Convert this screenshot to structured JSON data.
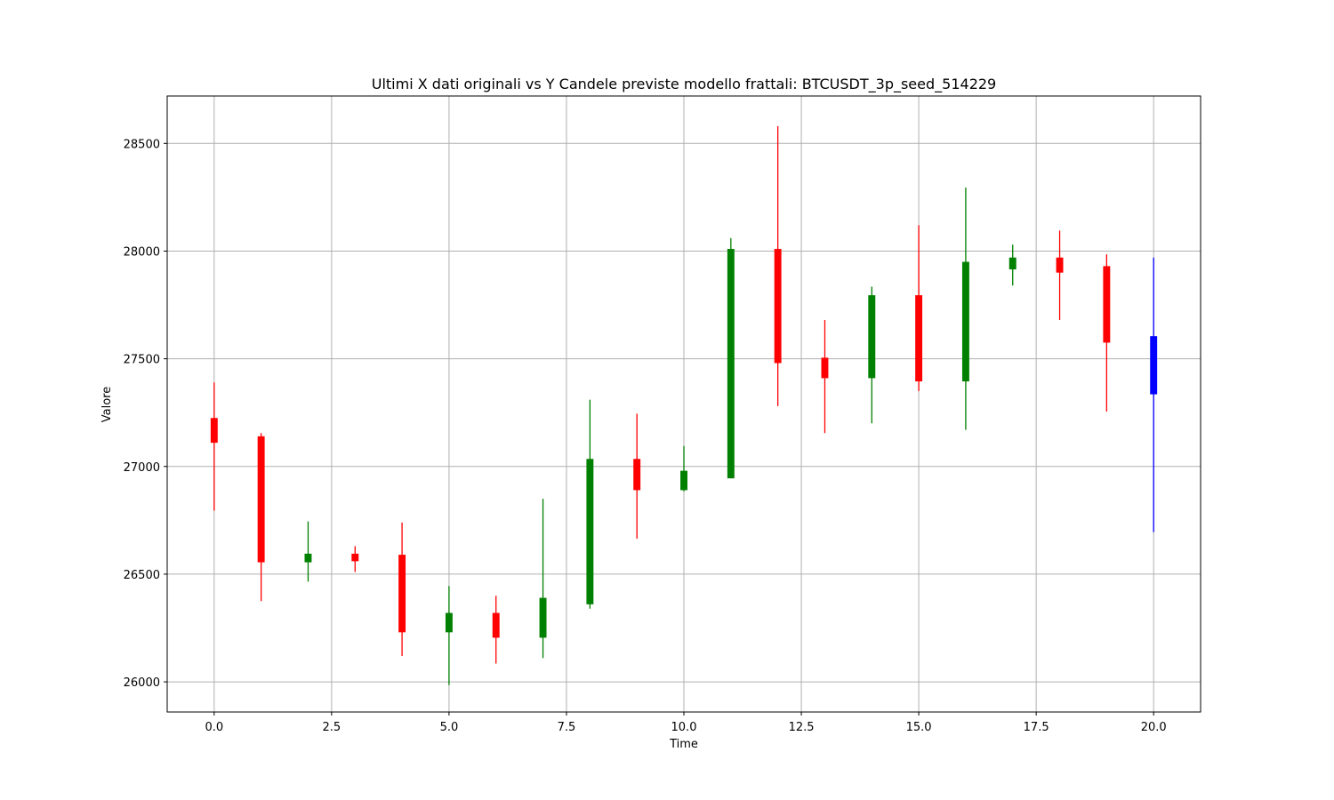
{
  "chart_data": {
    "type": "candlestick",
    "title": "Ultimi X dati originali vs Y Candele previste modello frattali: BTCUSDT_3p_seed_514229",
    "xlabel": "Time",
    "ylabel": "Valore",
    "xlim": [
      -1.0,
      21.0
    ],
    "ylim": [
      25860,
      28720
    ],
    "xticks": [
      0.0,
      2.5,
      5.0,
      7.5,
      10.0,
      12.5,
      15.0,
      17.5,
      20.0
    ],
    "xtick_labels": [
      "0.0",
      "2.5",
      "5.0",
      "7.5",
      "10.0",
      "12.5",
      "15.0",
      "17.5",
      "20.0"
    ],
    "yticks": [
      26000,
      26500,
      27000,
      27500,
      28000,
      28500
    ],
    "ytick_labels": [
      "26000",
      "26500",
      "27000",
      "27500",
      "28000",
      "28500"
    ],
    "grid": true,
    "colors": {
      "up": "#008000",
      "down": "#ff0000",
      "forecast": "#0000ff"
    },
    "candles": [
      {
        "x": 0,
        "open": 27225,
        "high": 27390,
        "low": 26795,
        "close": 27110,
        "color": "#ff0000"
      },
      {
        "x": 1,
        "open": 27140,
        "high": 27155,
        "low": 26375,
        "close": 26555,
        "color": "#ff0000"
      },
      {
        "x": 2,
        "open": 26555,
        "high": 26745,
        "low": 26465,
        "close": 26595,
        "color": "#008000"
      },
      {
        "x": 3,
        "open": 26595,
        "high": 26630,
        "low": 26510,
        "close": 26560,
        "color": "#ff0000"
      },
      {
        "x": 4,
        "open": 26590,
        "high": 26740,
        "low": 26120,
        "close": 26230,
        "color": "#ff0000"
      },
      {
        "x": 5,
        "open": 26230,
        "high": 26445,
        "low": 25985,
        "close": 26320,
        "color": "#008000"
      },
      {
        "x": 6,
        "open": 26320,
        "high": 26400,
        "low": 26085,
        "close": 26205,
        "color": "#ff0000"
      },
      {
        "x": 7,
        "open": 26205,
        "high": 26850,
        "low": 26110,
        "close": 26390,
        "color": "#008000"
      },
      {
        "x": 8,
        "open": 26360,
        "high": 27310,
        "low": 26340,
        "close": 27035,
        "color": "#008000"
      },
      {
        "x": 9,
        "open": 27035,
        "high": 27245,
        "low": 26665,
        "close": 26890,
        "color": "#ff0000"
      },
      {
        "x": 10,
        "open": 26890,
        "high": 27095,
        "low": 26885,
        "close": 26980,
        "color": "#008000"
      },
      {
        "x": 11,
        "open": 26945,
        "high": 28060,
        "low": 26945,
        "close": 28010,
        "color": "#008000"
      },
      {
        "x": 12,
        "open": 28010,
        "high": 28580,
        "low": 27280,
        "close": 27480,
        "color": "#ff0000"
      },
      {
        "x": 13,
        "open": 27505,
        "high": 27680,
        "low": 27155,
        "close": 27410,
        "color": "#ff0000"
      },
      {
        "x": 14,
        "open": 27410,
        "high": 27835,
        "low": 27200,
        "close": 27795,
        "color": "#008000"
      },
      {
        "x": 15,
        "open": 27795,
        "high": 28120,
        "low": 27350,
        "close": 27395,
        "color": "#ff0000"
      },
      {
        "x": 16,
        "open": 27395,
        "high": 28295,
        "low": 27170,
        "close": 27950,
        "color": "#008000"
      },
      {
        "x": 17,
        "open": 27915,
        "high": 28030,
        "low": 27840,
        "close": 27970,
        "color": "#008000"
      },
      {
        "x": 18,
        "open": 27970,
        "high": 28095,
        "low": 27680,
        "close": 27900,
        "color": "#ff0000"
      },
      {
        "x": 19,
        "open": 27930,
        "high": 27985,
        "low": 27255,
        "close": 27575,
        "color": "#ff0000"
      },
      {
        "x": 20,
        "open": 27605,
        "high": 27970,
        "low": 26695,
        "close": 27335,
        "color": "#0000ff"
      }
    ]
  }
}
